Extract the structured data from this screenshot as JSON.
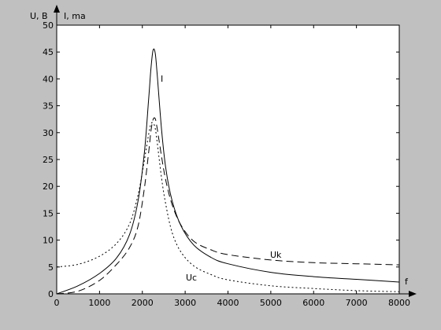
{
  "chart_data": {
    "type": "line",
    "title": "",
    "xlabel": "f",
    "ylabel": "U, B",
    "ylabel2": "I, ma",
    "xlim": [
      0,
      8000
    ],
    "ylim": [
      0,
      50
    ],
    "xticks": [
      0,
      1000,
      2000,
      3000,
      4000,
      5000,
      6000,
      7000,
      8000
    ],
    "yticks": [
      0,
      5,
      10,
      15,
      20,
      25,
      30,
      35,
      40,
      45,
      50
    ],
    "grid": false,
    "colors": {
      "background": "#c0c0c0",
      "plot_area": "#ffffff",
      "line": "#000000"
    },
    "series": [
      {
        "name": "I",
        "style": "solid",
        "x": [
          0,
          500,
          1000,
          1400,
          1700,
          1900,
          2050,
          2150,
          2200,
          2250,
          2300,
          2350,
          2450,
          2550,
          2700,
          2900,
          3200,
          3600,
          4000,
          5000,
          6000,
          7000,
          8000
        ],
        "values": [
          0.0,
          1.5,
          3.8,
          6.7,
          11.0,
          17.3,
          26.5,
          36.5,
          41.8,
          45.3,
          44.8,
          40.5,
          30.5,
          23.2,
          17.2,
          12.7,
          9.1,
          6.8,
          5.6,
          4.0,
          3.2,
          2.7,
          2.2
        ]
      },
      {
        "name": "Uk",
        "style": "dashed",
        "x": [
          0,
          500,
          1000,
          1400,
          1700,
          1900,
          2050,
          2150,
          2200,
          2250,
          2300,
          2350,
          2450,
          2550,
          2700,
          2900,
          3200,
          3600,
          4000,
          5000,
          6000,
          7000,
          8000
        ],
        "values": [
          0.0,
          0.5,
          2.5,
          5.5,
          8.6,
          12.6,
          19.8,
          26.5,
          30.2,
          32.4,
          32.6,
          30.6,
          25.5,
          21.0,
          16.5,
          12.8,
          9.8,
          8.2,
          7.3,
          6.3,
          5.8,
          5.6,
          5.4
        ]
      },
      {
        "name": "Uc",
        "style": "dotted",
        "x": [
          0,
          500,
          1000,
          1400,
          1700,
          1900,
          2050,
          2150,
          2200,
          2250,
          2300,
          2350,
          2450,
          2550,
          2700,
          2900,
          3200,
          3600,
          4000,
          5000,
          6000,
          7000,
          8000
        ],
        "values": [
          5.0,
          5.5,
          7.0,
          9.4,
          13.0,
          18.4,
          25.0,
          29.8,
          31.6,
          31.8,
          30.8,
          28.0,
          21.5,
          16.5,
          11.3,
          7.8,
          5.2,
          3.6,
          2.6,
          1.5,
          1.0,
          0.6,
          0.4
        ]
      }
    ]
  }
}
